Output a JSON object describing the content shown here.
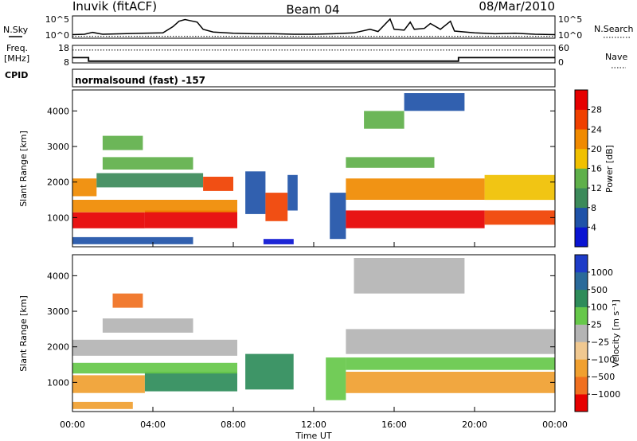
{
  "chart_data": [
    {
      "type": "line",
      "panel": "noise",
      "station": "Inuvik (fitACF)",
      "beam": "Beam 04",
      "date": "08/Mar/2010",
      "left_label": "N.Sky",
      "right_label": "N.Search",
      "left_ticks": [
        "10^5",
        "10^0"
      ],
      "right_ticks": [
        "10^5",
        "10^0"
      ],
      "ylim_log10": [
        0,
        5
      ],
      "baseline_log10": 0.4,
      "series": [
        {
          "values": [
            [
              0.0,
              0.8
            ],
            [
              0.6,
              0.9
            ],
            [
              1.0,
              1.3
            ],
            [
              1.5,
              0.9
            ],
            [
              2.5,
              1.0
            ],
            [
              3.5,
              1.1
            ],
            [
              4.5,
              1.2
            ],
            [
              5.0,
              2.6
            ],
            [
              5.3,
              3.8
            ],
            [
              5.6,
              4.2
            ],
            [
              5.9,
              3.9
            ],
            [
              6.2,
              3.6
            ],
            [
              6.5,
              2.0
            ],
            [
              7.0,
              1.4
            ],
            [
              8.0,
              1.1
            ],
            [
              9.0,
              1.0
            ],
            [
              10.0,
              1.0
            ],
            [
              11.0,
              0.9
            ],
            [
              12.0,
              0.9
            ],
            [
              13.0,
              1.0
            ],
            [
              14.0,
              1.2
            ],
            [
              14.8,
              2.0
            ],
            [
              15.2,
              1.5
            ],
            [
              15.8,
              4.3
            ],
            [
              16.0,
              2.0
            ],
            [
              16.5,
              1.8
            ],
            [
              16.8,
              3.6
            ],
            [
              17.0,
              2.0
            ],
            [
              17.5,
              2.2
            ],
            [
              17.8,
              3.3
            ],
            [
              18.3,
              2.0
            ],
            [
              18.8,
              3.8
            ],
            [
              19.0,
              1.6
            ],
            [
              20.0,
              1.2
            ],
            [
              21.0,
              1.0
            ],
            [
              22.0,
              1.1
            ],
            [
              23.0,
              0.9
            ],
            [
              24.0,
              0.8
            ]
          ]
        }
      ]
    },
    {
      "type": "line",
      "panel": "frequency",
      "left_label": "Freq.",
      "left_unit": "[MHz]",
      "right_label": "Nave",
      "left_ticks": [
        18,
        8
      ],
      "right_ticks": [
        60,
        0
      ],
      "freq_lim": [
        8,
        18
      ],
      "nave_lim": [
        0,
        60
      ],
      "series": [
        {
          "values": [
            [
              0.0,
              11.0
            ],
            [
              0.8,
              11.0
            ],
            [
              0.8,
              9.0
            ],
            [
              19.2,
              9.0
            ],
            [
              19.2,
              11.0
            ],
            [
              24.0,
              11.0
            ]
          ]
        },
        {
          "values": [
            [
              0.0,
              44.0
            ],
            [
              24.0,
              44.0
            ]
          ]
        }
      ]
    },
    {
      "type": "heatmap",
      "panel": "power",
      "cpid_label": "CPID",
      "cpid": "normalsound (fast) -157",
      "ylabel": "Slant Range [km]",
      "yticks": [
        1000,
        2000,
        3000,
        4000
      ],
      "ylim": [
        180,
        4590
      ],
      "colorbar_label": "Power [dB]",
      "colorbar_ticks": [
        "4",
        "8",
        "12",
        "16",
        "20",
        "24",
        "28"
      ],
      "colorbar_colors": [
        "#0a14d2",
        "#1f52a8",
        "#3c8a5a",
        "#5fb04a",
        "#f0c000",
        "#f08a00",
        "#f04000",
        "#e60000"
      ],
      "values": [
        {
          "t0": 0.0,
          "t1": 3.6,
          "r0": 700,
          "r1": 1150,
          "level": 7
        },
        {
          "t0": 3.6,
          "t1": 8.2,
          "r0": 700,
          "r1": 1200,
          "level": 7
        },
        {
          "t0": 0.0,
          "t1": 8.2,
          "r0": 1150,
          "r1": 1500,
          "level": 5
        },
        {
          "t0": 0.0,
          "t1": 1.2,
          "r0": 1600,
          "r1": 2100,
          "level": 5
        },
        {
          "t0": 1.2,
          "t1": 6.5,
          "r0": 1850,
          "r1": 2250,
          "level": 2
        },
        {
          "t0": 6.5,
          "t1": 8.0,
          "r0": 1750,
          "r1": 2150,
          "level": 6
        },
        {
          "t0": 1.5,
          "t1": 6.0,
          "r0": 2350,
          "r1": 2700,
          "level": 3
        },
        {
          "t0": 1.5,
          "t1": 3.5,
          "r0": 2900,
          "r1": 3300,
          "level": 3
        },
        {
          "t0": 8.6,
          "t1": 9.6,
          "r0": 1100,
          "r1": 2300,
          "level": 1
        },
        {
          "t0": 9.6,
          "t1": 10.7,
          "r0": 900,
          "r1": 1700,
          "level": 6
        },
        {
          "t0": 10.7,
          "t1": 11.2,
          "r0": 1200,
          "r1": 2200,
          "level": 1
        },
        {
          "t0": 12.8,
          "t1": 13.6,
          "r0": 400,
          "r1": 1700,
          "level": 1
        },
        {
          "t0": 13.6,
          "t1": 20.5,
          "r0": 700,
          "r1": 1200,
          "level": 7
        },
        {
          "t0": 20.5,
          "t1": 24.0,
          "r0": 800,
          "r1": 1200,
          "level": 6
        },
        {
          "t0": 13.6,
          "t1": 20.5,
          "r0": 1500,
          "r1": 2100,
          "level": 5
        },
        {
          "t0": 20.5,
          "t1": 24.0,
          "r0": 1500,
          "r1": 2200,
          "level": 4
        },
        {
          "t0": 13.6,
          "t1": 18.0,
          "r0": 2400,
          "r1": 2700,
          "level": 3
        },
        {
          "t0": 14.5,
          "t1": 16.5,
          "r0": 3500,
          "r1": 4000,
          "level": 3
        },
        {
          "t0": 16.5,
          "t1": 19.5,
          "r0": 4000,
          "r1": 4500,
          "level": 1
        },
        {
          "t0": 0.0,
          "t1": 6.0,
          "r0": 250,
          "r1": 450,
          "level": 1
        },
        {
          "t0": 9.5,
          "t1": 11.0,
          "r0": 250,
          "r1": 400,
          "level": 0
        }
      ]
    },
    {
      "type": "heatmap",
      "panel": "velocity",
      "ylabel": "Slant Range [km]",
      "yticks": [
        1000,
        2000,
        3000,
        4000
      ],
      "ylim": [
        180,
        4590
      ],
      "colorbar_label": "Velocity [m s⁻¹]",
      "colorbar_ticks": [
        "1000",
        "500",
        "100",
        "25",
        "−25",
        "−100",
        "−500",
        "−1000"
      ],
      "colorbar_colors": [
        "#1e3cc8",
        "#2a6a9a",
        "#2e8c5a",
        "#66c84a",
        "#b4b4b4",
        "#f0c890",
        "#f0a030",
        "#f07020",
        "#e60000"
      ],
      "values": [
        {
          "t0": 0.0,
          "t1": 3.6,
          "r0": 700,
          "r1": 1200,
          "level": 6
        },
        {
          "t0": 3.6,
          "t1": 8.2,
          "r0": 750,
          "r1": 1300,
          "level": 2
        },
        {
          "t0": 0.0,
          "t1": 8.2,
          "r0": 1250,
          "r1": 1550,
          "level": 3
        },
        {
          "t0": 0.0,
          "t1": 8.2,
          "r0": 1750,
          "r1": 2200,
          "level": 4
        },
        {
          "t0": 8.6,
          "t1": 11.0,
          "r0": 800,
          "r1": 1800,
          "level": 2
        },
        {
          "t0": 12.6,
          "t1": 13.6,
          "r0": 500,
          "r1": 1700,
          "level": 3
        },
        {
          "t0": 13.6,
          "t1": 24.0,
          "r0": 700,
          "r1": 1300,
          "level": 6
        },
        {
          "t0": 13.6,
          "t1": 24.0,
          "r0": 1350,
          "r1": 1700,
          "level": 3
        },
        {
          "t0": 13.6,
          "t1": 24.0,
          "r0": 1800,
          "r1": 2500,
          "level": 4
        },
        {
          "t0": 1.5,
          "t1": 6.0,
          "r0": 2400,
          "r1": 2800,
          "level": 4
        },
        {
          "t0": 14.0,
          "t1": 19.5,
          "r0": 3500,
          "r1": 4500,
          "level": 4
        },
        {
          "t0": 2.0,
          "t1": 3.5,
          "r0": 3100,
          "r1": 3500,
          "level": 7
        },
        {
          "t0": 0.0,
          "t1": 3.0,
          "r0": 250,
          "r1": 450,
          "level": 6
        }
      ]
    }
  ],
  "axis": {
    "xlabel": "Time UT",
    "xticks": [
      "00:00",
      "04:00",
      "08:00",
      "12:00",
      "16:00",
      "20:00",
      "00:00"
    ],
    "xlim_hours": [
      0,
      24
    ]
  }
}
